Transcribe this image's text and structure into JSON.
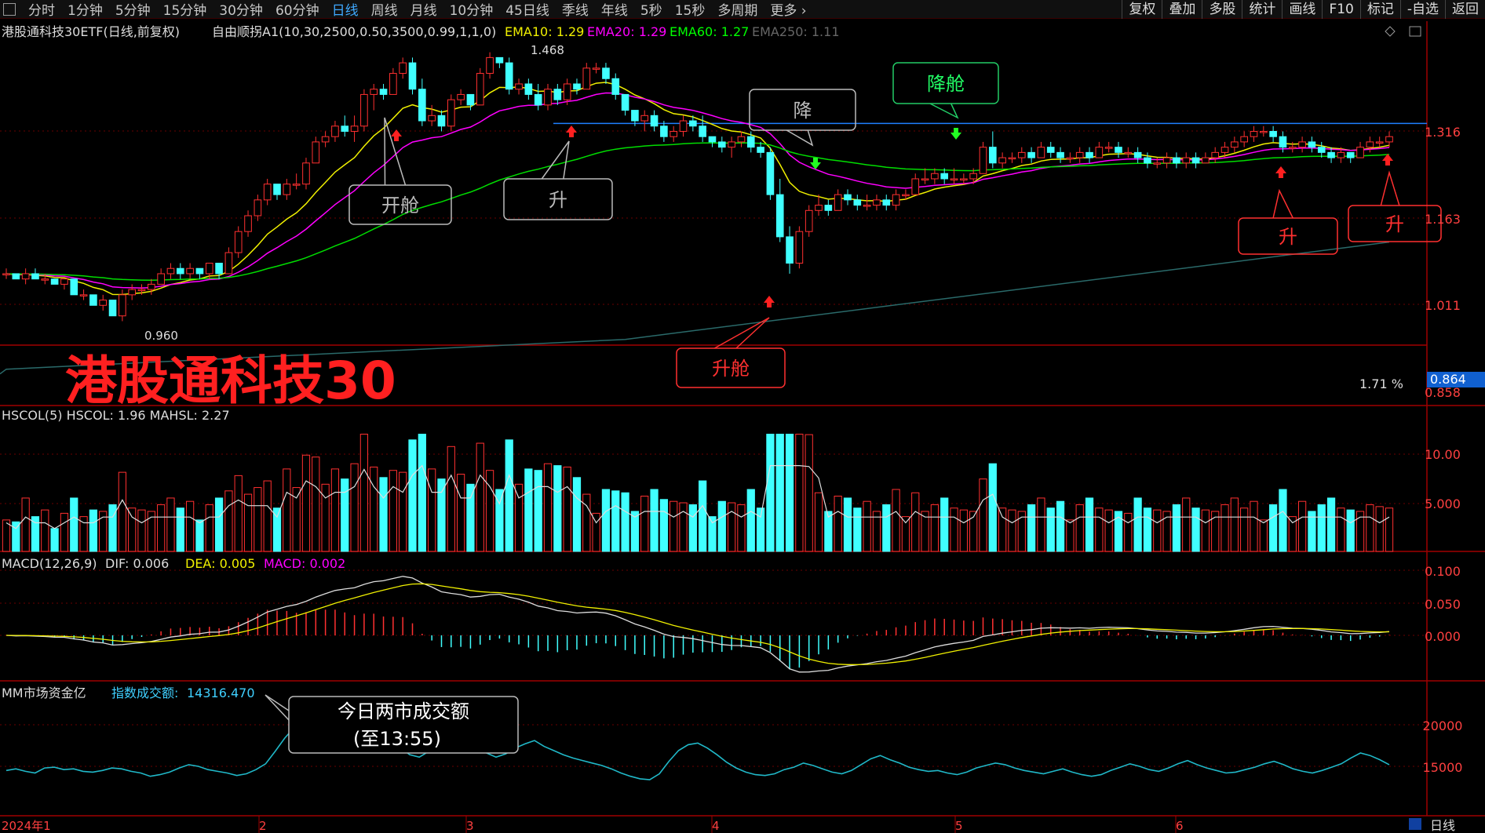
{
  "toolbar": {
    "period_tabs": [
      "分时",
      "1分钟",
      "5分钟",
      "15分钟",
      "30分钟",
      "60分钟",
      "日线",
      "周线",
      "月线",
      "10分钟",
      "45日线",
      "季线",
      "年线",
      "5秒",
      "15秒",
      "多周期",
      "更多 ›"
    ],
    "active_tab": "日线",
    "right_tools": [
      "复权",
      "叠加",
      "多股",
      "统计",
      "画线",
      "F10",
      "标记",
      "-自选",
      "返回"
    ]
  },
  "header": {
    "title": "港股通科技30ETF(日线,前复权)",
    "indicator": "自由顺拐A1(10,30,2500,0.50,3500,0.99,1,1,0)",
    "ema": [
      {
        "label": "EMA10: 1.29",
        "color": "#f0f000"
      },
      {
        "label": "EMA20: 1.29",
        "color": "#ff00ff"
      },
      {
        "label": "EMA60: 1.27",
        "color": "#00ff00"
      },
      {
        "label": "EMA250: 1.11",
        "color": "#666666"
      }
    ]
  },
  "main": {
    "big_title": "港股通科技30",
    "price_labels": [
      "1.316",
      "1.163",
      "1.011",
      "0.858"
    ],
    "current_price": "0.864",
    "pct_label": "1.71 %",
    "high_label": "1.468",
    "low_label": "0.960",
    "annotations": {
      "open": "开舱",
      "up1": "升",
      "down": "降",
      "down_cabin": "降舱",
      "up_cabin": "升舱",
      "up2": "升",
      "up3": "升"
    }
  },
  "volume": {
    "header": "HSCOL(5)  HSCOL: 1.96  MAHSL: 2.27",
    "axis": [
      "10.00",
      "5.000"
    ]
  },
  "macd": {
    "title": "MACD(12,26,9)",
    "dif": "DIF: 0.006",
    "dea": "DEA: 0.005",
    "macd": "MACD: 0.002",
    "axis": [
      "0.100",
      "0.050",
      "0.000"
    ]
  },
  "funds": {
    "title": "MM市场资金亿",
    "sub_label": "指数成交额:",
    "sub_value": "14316.470",
    "callout_line1": "今日两市成交额",
    "callout_line2": "(至13:55)",
    "axis": [
      "20000",
      "15000"
    ]
  },
  "xaxis": {
    "labels": [
      "2024年1",
      "2",
      "3",
      "4",
      "5",
      "6"
    ],
    "period_button": "日线"
  },
  "chart_data": {
    "type": "candlestick",
    "title": "港股通科技30ETF(日线,前复权)",
    "ylim": [
      0.858,
      1.468
    ],
    "x_months": [
      "2024年1",
      "2",
      "3",
      "4",
      "5",
      "6"
    ],
    "candles": [
      [
        1.05,
        1.06,
        1.04,
        1.05
      ],
      [
        1.05,
        1.05,
        1.04,
        1.04
      ],
      [
        1.04,
        1.06,
        1.03,
        1.05
      ],
      [
        1.05,
        1.06,
        1.04,
        1.04
      ],
      [
        1.04,
        1.05,
        1.03,
        1.04
      ],
      [
        1.04,
        1.04,
        1.03,
        1.03
      ],
      [
        1.03,
        1.04,
        1.02,
        1.04
      ],
      [
        1.04,
        1.04,
        1.01,
        1.01
      ],
      [
        1.01,
        1.02,
        1.0,
        1.01
      ],
      [
        1.01,
        1.01,
        0.99,
        0.99
      ],
      [
        0.99,
        1.01,
        0.98,
        1.0
      ],
      [
        1.0,
        1.0,
        0.97,
        0.97
      ],
      [
        0.97,
        1.02,
        0.96,
        1.01
      ],
      [
        1.01,
        1.03,
        1.0,
        1.02
      ],
      [
        1.02,
        1.03,
        1.01,
        1.02
      ],
      [
        1.02,
        1.04,
        1.01,
        1.03
      ],
      [
        1.03,
        1.06,
        1.03,
        1.05
      ],
      [
        1.05,
        1.07,
        1.04,
        1.06
      ],
      [
        1.06,
        1.07,
        1.04,
        1.05
      ],
      [
        1.05,
        1.07,
        1.04,
        1.06
      ],
      [
        1.06,
        1.06,
        1.04,
        1.05
      ],
      [
        1.05,
        1.07,
        1.04,
        1.07
      ],
      [
        1.07,
        1.07,
        1.04,
        1.05
      ],
      [
        1.05,
        1.1,
        1.05,
        1.09
      ],
      [
        1.09,
        1.14,
        1.08,
        1.13
      ],
      [
        1.13,
        1.17,
        1.12,
        1.16
      ],
      [
        1.16,
        1.2,
        1.15,
        1.19
      ],
      [
        1.19,
        1.23,
        1.18,
        1.22
      ],
      [
        1.22,
        1.22,
        1.19,
        1.2
      ],
      [
        1.2,
        1.23,
        1.19,
        1.22
      ],
      [
        1.22,
        1.24,
        1.21,
        1.22
      ],
      [
        1.22,
        1.27,
        1.21,
        1.26
      ],
      [
        1.26,
        1.31,
        1.26,
        1.3
      ],
      [
        1.3,
        1.32,
        1.29,
        1.31
      ],
      [
        1.31,
        1.34,
        1.3,
        1.33
      ],
      [
        1.33,
        1.35,
        1.31,
        1.32
      ],
      [
        1.32,
        1.35,
        1.3,
        1.33
      ],
      [
        1.33,
        1.4,
        1.32,
        1.39
      ],
      [
        1.39,
        1.41,
        1.36,
        1.4
      ],
      [
        1.4,
        1.41,
        1.38,
        1.39
      ],
      [
        1.39,
        1.44,
        1.39,
        1.43
      ],
      [
        1.43,
        1.46,
        1.42,
        1.45
      ],
      [
        1.45,
        1.46,
        1.39,
        1.4
      ],
      [
        1.4,
        1.42,
        1.33,
        1.34
      ],
      [
        1.34,
        1.37,
        1.33,
        1.35
      ],
      [
        1.35,
        1.36,
        1.32,
        1.33
      ],
      [
        1.33,
        1.39,
        1.32,
        1.38
      ],
      [
        1.38,
        1.4,
        1.37,
        1.39
      ],
      [
        1.39,
        1.39,
        1.36,
        1.37
      ],
      [
        1.37,
        1.44,
        1.37,
        1.43
      ],
      [
        1.43,
        1.47,
        1.42,
        1.46
      ],
      [
        1.46,
        1.46,
        1.44,
        1.45
      ],
      [
        1.45,
        1.46,
        1.39,
        1.4
      ],
      [
        1.4,
        1.42,
        1.39,
        1.41
      ],
      [
        1.41,
        1.42,
        1.38,
        1.39
      ],
      [
        1.39,
        1.41,
        1.36,
        1.37
      ],
      [
        1.37,
        1.41,
        1.36,
        1.4
      ],
      [
        1.4,
        1.41,
        1.37,
        1.38
      ],
      [
        1.38,
        1.42,
        1.37,
        1.41
      ],
      [
        1.41,
        1.42,
        1.39,
        1.4
      ],
      [
        1.4,
        1.45,
        1.4,
        1.44
      ],
      [
        1.44,
        1.45,
        1.43,
        1.44
      ],
      [
        1.44,
        1.45,
        1.41,
        1.42
      ],
      [
        1.42,
        1.43,
        1.38,
        1.39
      ],
      [
        1.39,
        1.39,
        1.35,
        1.36
      ],
      [
        1.36,
        1.36,
        1.33,
        1.34
      ],
      [
        1.34,
        1.36,
        1.32,
        1.35
      ],
      [
        1.35,
        1.36,
        1.32,
        1.33
      ],
      [
        1.33,
        1.34,
        1.3,
        1.31
      ],
      [
        1.31,
        1.33,
        1.3,
        1.32
      ],
      [
        1.32,
        1.35,
        1.31,
        1.34
      ],
      [
        1.34,
        1.35,
        1.32,
        1.33
      ],
      [
        1.33,
        1.35,
        1.3,
        1.31
      ],
      [
        1.31,
        1.31,
        1.29,
        1.3
      ],
      [
        1.3,
        1.31,
        1.28,
        1.29
      ],
      [
        1.29,
        1.31,
        1.27,
        1.3
      ],
      [
        1.3,
        1.32,
        1.29,
        1.31
      ],
      [
        1.31,
        1.32,
        1.28,
        1.29
      ],
      [
        1.29,
        1.3,
        1.27,
        1.28
      ],
      [
        1.28,
        1.29,
        1.19,
        1.2
      ],
      [
        1.2,
        1.23,
        1.11,
        1.12
      ],
      [
        1.12,
        1.14,
        1.05,
        1.07
      ],
      [
        1.07,
        1.14,
        1.06,
        1.13
      ],
      [
        1.13,
        1.18,
        1.12,
        1.17
      ],
      [
        1.17,
        1.2,
        1.16,
        1.18
      ],
      [
        1.18,
        1.19,
        1.16,
        1.17
      ],
      [
        1.17,
        1.21,
        1.17,
        1.2
      ],
      [
        1.2,
        1.21,
        1.18,
        1.19
      ],
      [
        1.19,
        1.2,
        1.17,
        1.18
      ],
      [
        1.18,
        1.2,
        1.17,
        1.18
      ],
      [
        1.18,
        1.2,
        1.17,
        1.19
      ],
      [
        1.19,
        1.2,
        1.17,
        1.18
      ],
      [
        1.18,
        1.21,
        1.17,
        1.2
      ],
      [
        1.2,
        1.21,
        1.19,
        1.2
      ],
      [
        1.2,
        1.24,
        1.2,
        1.23
      ],
      [
        1.23,
        1.25,
        1.22,
        1.23
      ],
      [
        1.23,
        1.25,
        1.22,
        1.24
      ],
      [
        1.24,
        1.25,
        1.22,
        1.23
      ],
      [
        1.23,
        1.25,
        1.22,
        1.23
      ],
      [
        1.23,
        1.24,
        1.22,
        1.23
      ],
      [
        1.23,
        1.25,
        1.22,
        1.24
      ],
      [
        1.24,
        1.3,
        1.24,
        1.29
      ],
      [
        1.29,
        1.32,
        1.25,
        1.26
      ],
      [
        1.26,
        1.28,
        1.25,
        1.27
      ],
      [
        1.27,
        1.28,
        1.26,
        1.27
      ],
      [
        1.27,
        1.29,
        1.26,
        1.28
      ],
      [
        1.28,
        1.29,
        1.26,
        1.27
      ],
      [
        1.27,
        1.3,
        1.27,
        1.29
      ],
      [
        1.29,
        1.3,
        1.27,
        1.28
      ],
      [
        1.28,
        1.29,
        1.26,
        1.27
      ],
      [
        1.27,
        1.28,
        1.26,
        1.27
      ],
      [
        1.27,
        1.29,
        1.26,
        1.28
      ],
      [
        1.28,
        1.29,
        1.26,
        1.27
      ],
      [
        1.27,
        1.3,
        1.27,
        1.29
      ],
      [
        1.29,
        1.3,
        1.28,
        1.29
      ],
      [
        1.29,
        1.3,
        1.27,
        1.28
      ],
      [
        1.28,
        1.29,
        1.27,
        1.28
      ],
      [
        1.28,
        1.29,
        1.26,
        1.27
      ],
      [
        1.27,
        1.28,
        1.25,
        1.26
      ],
      [
        1.26,
        1.27,
        1.25,
        1.26
      ],
      [
        1.26,
        1.28,
        1.25,
        1.27
      ],
      [
        1.27,
        1.28,
        1.25,
        1.26
      ],
      [
        1.26,
        1.28,
        1.25,
        1.27
      ],
      [
        1.27,
        1.28,
        1.25,
        1.26
      ],
      [
        1.26,
        1.28,
        1.26,
        1.27
      ],
      [
        1.27,
        1.29,
        1.26,
        1.28
      ],
      [
        1.28,
        1.3,
        1.27,
        1.29
      ],
      [
        1.29,
        1.31,
        1.28,
        1.3
      ],
      [
        1.3,
        1.32,
        1.29,
        1.31
      ],
      [
        1.31,
        1.33,
        1.3,
        1.32
      ],
      [
        1.32,
        1.33,
        1.31,
        1.32
      ],
      [
        1.32,
        1.33,
        1.3,
        1.31
      ],
      [
        1.31,
        1.32,
        1.28,
        1.29
      ],
      [
        1.29,
        1.3,
        1.28,
        1.29
      ],
      [
        1.29,
        1.31,
        1.28,
        1.3
      ],
      [
        1.3,
        1.31,
        1.28,
        1.29
      ],
      [
        1.29,
        1.3,
        1.27,
        1.28
      ],
      [
        1.28,
        1.29,
        1.26,
        1.27
      ],
      [
        1.27,
        1.29,
        1.26,
        1.28
      ],
      [
        1.28,
        1.28,
        1.26,
        1.27
      ],
      [
        1.27,
        1.3,
        1.27,
        1.29
      ],
      [
        1.29,
        1.31,
        1.28,
        1.3
      ],
      [
        1.3,
        1.31,
        1.29,
        1.3
      ],
      [
        1.3,
        1.32,
        1.29,
        1.31
      ]
    ],
    "ema250": [
      1.055,
      1.085,
      1.11
    ],
    "volume_axis": [
      5,
      10
    ],
    "macd_axis": [
      0,
      0.05,
      0.1
    ],
    "funds_axis": [
      15000,
      20000
    ],
    "funds_series": [
      14500,
      14700,
      14400,
      14200,
      14800,
      14900,
      14600,
      14700,
      14400,
      14300,
      14500,
      14800,
      14700,
      14400,
      14200,
      13800,
      14000,
      14300,
      14800,
      15200,
      15000,
      14600,
      14400,
      14200,
      13900,
      14100,
      14600,
      15300,
      16800,
      18400,
      19700,
      17800,
      16900,
      16700,
      16800,
      17200,
      17600,
      17100,
      16900,
      17500,
      18200,
      17300,
      16400,
      16100,
      16800,
      17900,
      18900,
      19700,
      19100,
      17800,
      16600,
      16100,
      16500,
      17200,
      17700,
      18100,
      17400,
      16900,
      16400,
      16000,
      15700,
      15400,
      15100,
      14700,
      14200,
      13800,
      13500,
      13400,
      14100,
      15600,
      16900,
      17600,
      17800,
      17200,
      16400,
      15500,
      14800,
      14300,
      14000,
      13900,
      14100,
      14600,
      14900,
      15400,
      15100,
      14700,
      14300,
      14100,
      14500,
      15200,
      15900,
      16300,
      15800,
      15400,
      14900,
      14600,
      14400,
      14500,
      14200,
      14000,
      14300,
      14800,
      15100,
      15400,
      15200,
      14800,
      14500,
      14300,
      14100,
      14400,
      14700,
      14300,
      14000,
      13800,
      14000,
      14500,
      14900,
      15300,
      15000,
      14600,
      14400,
      14800,
      15300,
      15700,
      15200,
      14800,
      14500,
      14200,
      14300,
      14600,
      14900,
      15300,
      15600,
      15200,
      14700,
      14400,
      14200,
      14500,
      14900,
      15300,
      16000,
      16600,
      16300,
      15800,
      15200
    ]
  }
}
